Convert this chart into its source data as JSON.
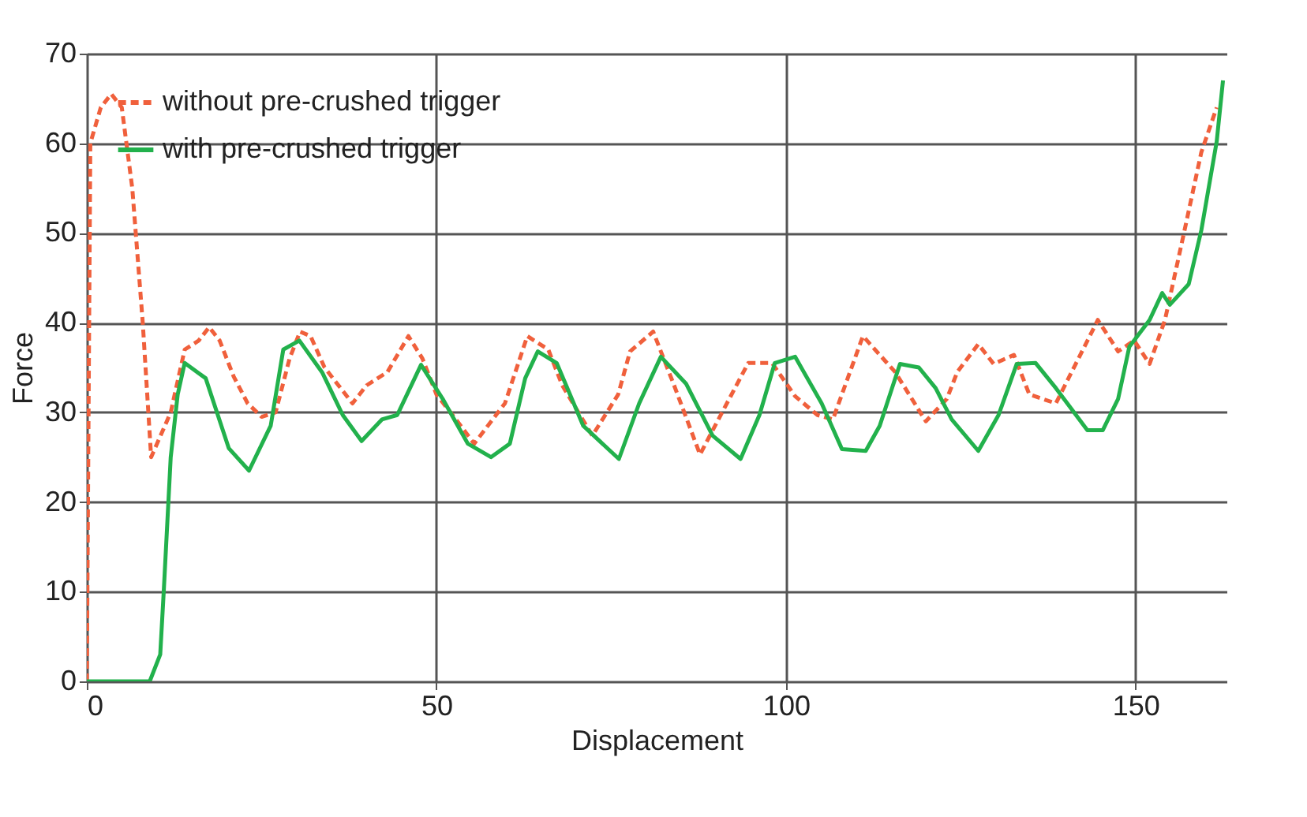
{
  "chart_data": {
    "type": "line",
    "xlabel": "Displacement",
    "ylabel": "Force",
    "xlim": [
      0,
      163
    ],
    "xticks": [
      0,
      50,
      100,
      150
    ],
    "ylim": [
      0,
      70
    ],
    "yticks": [
      0,
      10,
      20,
      30,
      40,
      50,
      60,
      70
    ],
    "grid": true,
    "legend": "top left",
    "marker": "none",
    "series": [
      {
        "name": "without pre-crushed trigger",
        "color": "#f0603c",
        "line_style": "dashed",
        "x": [
          0,
          0.5,
          2,
          3.5,
          5,
          6.5,
          8,
          9.2,
          12,
          14,
          16,
          17.5,
          19,
          21,
          23,
          25,
          27,
          29,
          30.5,
          32,
          34,
          36,
          38,
          40,
          43,
          46,
          48,
          50,
          53,
          55.4,
          59.8,
          63,
          66,
          68,
          72.3,
          76,
          77.7,
          81,
          84,
          87.7,
          91,
          94.6,
          98,
          101.3,
          104.5,
          106.7,
          111,
          115.6,
          120,
          123,
          124.5,
          127.5,
          129.7,
          132.6,
          134.8,
          138.6,
          141.5,
          144.6,
          147.5,
          149.8,
          152,
          154.2,
          157,
          159.4,
          161.6
        ],
        "values": [
          0,
          60,
          64,
          65.5,
          64,
          55,
          40,
          25,
          30,
          37,
          38,
          39.5,
          38,
          34,
          31,
          29.5,
          30,
          36,
          39,
          38.5,
          35,
          33,
          31,
          33,
          34.5,
          38.5,
          36,
          32,
          29,
          26.5,
          31,
          38.5,
          37,
          33,
          27.4,
          32,
          36.8,
          39,
          33,
          25.3,
          30.2,
          35.5,
          35.5,
          31.8,
          29.7,
          29.2,
          38.5,
          34.5,
          29,
          31.5,
          34.5,
          37.6,
          35.4,
          36.4,
          32,
          31,
          35.5,
          40.3,
          36.8,
          38,
          35.4,
          40.3,
          50.3,
          59,
          64
        ]
      },
      {
        "name": "with pre-crushed trigger",
        "color": "#22b14c",
        "line_style": "solid",
        "x": [
          0,
          9,
          10.5,
          11,
          12,
          13,
          14,
          17,
          20.3,
          23.2,
          26.3,
          28.1,
          30.4,
          33.7,
          36.6,
          39.3,
          42.2,
          44.4,
          47.8,
          50.9,
          54.5,
          57.8,
          60.5,
          62.7,
          64.5,
          67.2,
          71,
          76.1,
          79,
          82.1,
          85.7,
          89.5,
          93.5,
          96.2,
          98.4,
          101.3,
          105.1,
          108,
          111.4,
          113.4,
          116.3,
          119,
          121.4,
          123.7,
          127.5,
          130.4,
          133,
          135.7,
          138.6,
          143.1,
          145.3,
          147.5,
          149.1,
          152,
          153.8,
          154.9,
          157.6,
          159.4,
          161.6,
          162.5
        ],
        "values": [
          0,
          0,
          3,
          10,
          25,
          32,
          35.5,
          33.8,
          26,
          23.5,
          28.5,
          37,
          38,
          34.4,
          29.7,
          26.8,
          29.2,
          29.7,
          35.3,
          31.5,
          26.5,
          25,
          26.5,
          33.8,
          36.8,
          35.5,
          28.5,
          24.8,
          31,
          36.2,
          33.2,
          27.4,
          24.8,
          29.7,
          35.5,
          36.2,
          31,
          25.9,
          25.7,
          28.5,
          35.4,
          35,
          32.7,
          29.2,
          25.7,
          29.7,
          35.4,
          35.5,
          32.7,
          28,
          28,
          31.5,
          37.3,
          40.3,
          43.3,
          42,
          44.3,
          50.3,
          60.2,
          67
        ]
      }
    ]
  }
}
